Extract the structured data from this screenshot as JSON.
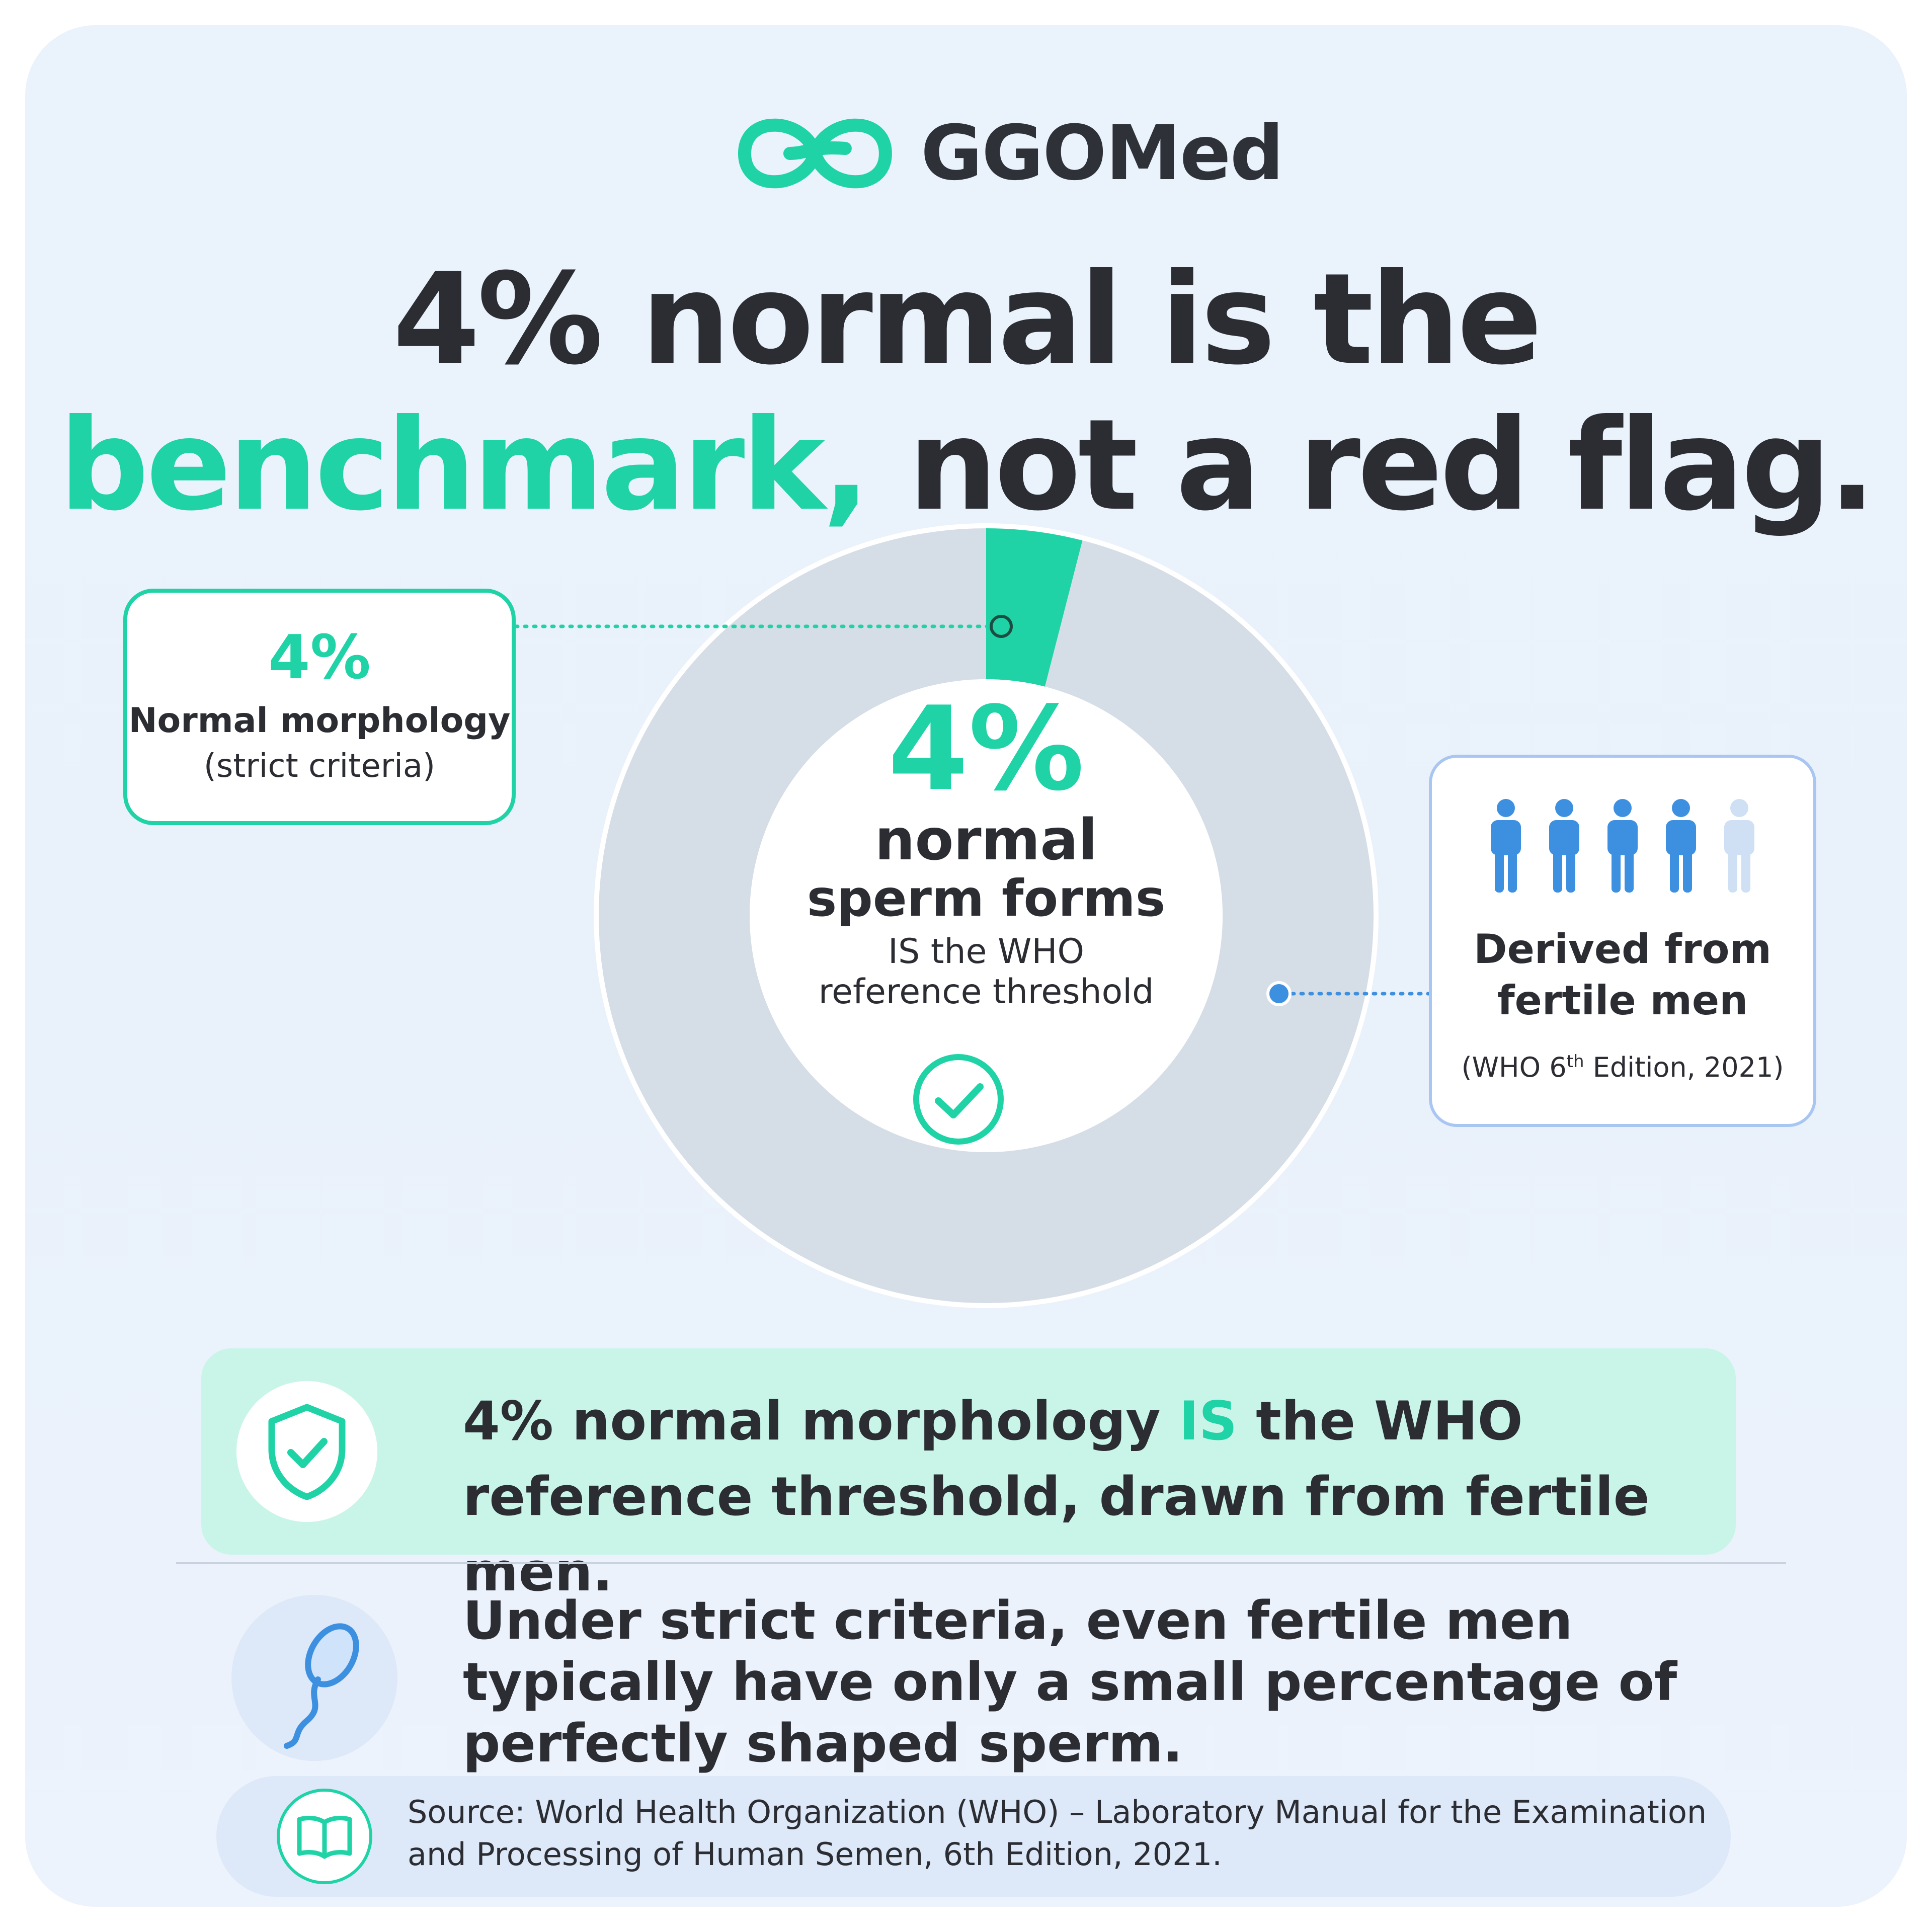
{
  "brand": {
    "name": "GGOMed",
    "color": "#1fd3a6",
    "logo_icon": "ggomed-logo-icon"
  },
  "headline": {
    "line1": "4% normal is the",
    "line2_accent": "benchmark,",
    "line2_rest": " not a red flag."
  },
  "chart_data": {
    "type": "pie",
    "categories": [
      "Normal",
      "Other"
    ],
    "values": [
      4,
      96
    ],
    "colors": [
      "#1fd3a6",
      "#d5dde6"
    ],
    "title": "",
    "legend": "none"
  },
  "donut_center": {
    "percent": "4%",
    "line1": "normal",
    "line2": "sperm forms",
    "line3": "IS the WHO",
    "line4": "reference threshold",
    "icon": "check-circle-icon"
  },
  "callout_left": {
    "percent": "4%",
    "line1": "Normal morphology",
    "line2": "(strict criteria)"
  },
  "callout_right": {
    "people_icon": "person-icon",
    "people_total": 5,
    "people_highlighted": 4,
    "people_color": "#3d8fe0",
    "people_faded_color": "#cfe0f4",
    "line1": "Derived from",
    "line2": "fertile men",
    "line3_pre": "(WHO 6",
    "line3_sup": "th",
    "line3_post": " Edition, 2021)"
  },
  "highlight": {
    "icon": "shield-check-icon",
    "text_pre": "4% normal morphology ",
    "text_accent": "IS",
    "text_mid": " the WHO",
    "text_line2": "reference threshold, drawn from fertile men."
  },
  "note": {
    "icon": "sperm-icon",
    "line1": "Under strict criteria, even fertile men",
    "line2": "typically have only a small percentage of",
    "line3": "perfectly shaped sperm."
  },
  "source": {
    "icon": "book-icon",
    "line1": "Source: World Health Organization (WHO) – Laboratory Manual for the Examination",
    "line2": "and Processing of Human Semen, 6th Edition, 2021."
  }
}
